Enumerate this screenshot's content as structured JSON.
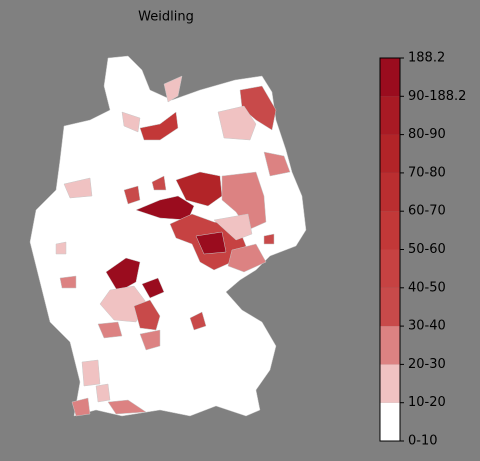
{
  "title": "Weidling",
  "colorbar": {
    "ticks": [
      "0-10",
      "10-20",
      "20-30",
      "30-40",
      "40-50",
      "50-60",
      "60-70",
      "70-80",
      "80-90",
      "90-188.2",
      "188.2"
    ],
    "colors": [
      "#ffffff",
      "#f0c2c2",
      "#dc8282",
      "#c84a4a",
      "#c64242",
      "#c23838",
      "#ba2e30",
      "#b22428",
      "#a81a24",
      "#9a0c1e"
    ]
  }
}
